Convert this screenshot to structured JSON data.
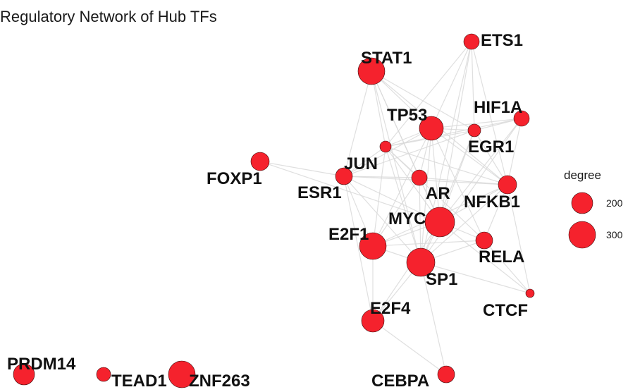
{
  "title": "Regulatory Network of Hub TFs",
  "colors": {
    "node_fill": "#f5222d",
    "node_stroke": "#3a0a0a",
    "edge": "#d9d9d9"
  },
  "legend": {
    "title": "degree",
    "items": [
      {
        "label": "200"
      },
      {
        "label": "300"
      }
    ]
  },
  "nodes": [
    {
      "id": "STAT1",
      "label": "STAT1"
    },
    {
      "id": "ETS1",
      "label": "ETS1"
    },
    {
      "id": "TP53",
      "label": "TP53"
    },
    {
      "id": "HIF1A",
      "label": "HIF1A"
    },
    {
      "id": "EGR1",
      "label": "EGR1"
    },
    {
      "id": "JUN",
      "label": "JUN"
    },
    {
      "id": "FOXP1",
      "label": "FOXP1"
    },
    {
      "id": "ESR1",
      "label": "ESR1"
    },
    {
      "id": "AR",
      "label": "AR"
    },
    {
      "id": "NFKB1",
      "label": "NFKB1"
    },
    {
      "id": "MYC",
      "label": "MYC"
    },
    {
      "id": "E2F1",
      "label": "E2F1"
    },
    {
      "id": "RELA",
      "label": "RELA"
    },
    {
      "id": "SP1",
      "label": "SP1"
    },
    {
      "id": "CTCF",
      "label": "CTCF"
    },
    {
      "id": "E2F4",
      "label": "E2F4"
    },
    {
      "id": "PRDM14",
      "label": "PRDM14"
    },
    {
      "id": "TEAD1",
      "label": "TEAD1"
    },
    {
      "id": "ZNF263",
      "label": "ZNF263"
    },
    {
      "id": "CEBPA",
      "label": "CEBPA"
    }
  ],
  "edges": [
    [
      "STAT1",
      "TP53"
    ],
    [
      "STAT1",
      "JUN"
    ],
    [
      "STAT1",
      "ESR1"
    ],
    [
      "STAT1",
      "MYC"
    ],
    [
      "STAT1",
      "SP1"
    ],
    [
      "STAT1",
      "NFKB1"
    ],
    [
      "STAT1",
      "EGR1"
    ],
    [
      "STAT1",
      "AR"
    ],
    [
      "ETS1",
      "TP53"
    ],
    [
      "ETS1",
      "EGR1"
    ],
    [
      "ETS1",
      "NFKB1"
    ],
    [
      "ETS1",
      "JUN"
    ],
    [
      "ETS1",
      "MYC"
    ],
    [
      "ETS1",
      "SP1"
    ],
    [
      "TP53",
      "HIF1A"
    ],
    [
      "TP53",
      "EGR1"
    ],
    [
      "TP53",
      "JUN"
    ],
    [
      "TP53",
      "ESR1"
    ],
    [
      "TP53",
      "AR"
    ],
    [
      "TP53",
      "NFKB1"
    ],
    [
      "TP53",
      "MYC"
    ],
    [
      "TP53",
      "E2F1"
    ],
    [
      "TP53",
      "SP1"
    ],
    [
      "TP53",
      "RELA"
    ],
    [
      "HIF1A",
      "EGR1"
    ],
    [
      "HIF1A",
      "NFKB1"
    ],
    [
      "HIF1A",
      "MYC"
    ],
    [
      "HIF1A",
      "JUN"
    ],
    [
      "HIF1A",
      "SP1"
    ],
    [
      "EGR1",
      "JUN"
    ],
    [
      "EGR1",
      "NFKB1"
    ],
    [
      "EGR1",
      "MYC"
    ],
    [
      "EGR1",
      "SP1"
    ],
    [
      "EGR1",
      "ESR1"
    ],
    [
      "JUN",
      "ESR1"
    ],
    [
      "JUN",
      "AR"
    ],
    [
      "JUN",
      "MYC"
    ],
    [
      "JUN",
      "SP1"
    ],
    [
      "JUN",
      "NFKB1"
    ],
    [
      "JUN",
      "E2F1"
    ],
    [
      "JUN",
      "RELA"
    ],
    [
      "FOXP1",
      "ESR1"
    ],
    [
      "FOXP1",
      "MYC"
    ],
    [
      "ESR1",
      "AR"
    ],
    [
      "ESR1",
      "MYC"
    ],
    [
      "ESR1",
      "E2F1"
    ],
    [
      "ESR1",
      "SP1"
    ],
    [
      "ESR1",
      "E2F4"
    ],
    [
      "ESR1",
      "NFKB1"
    ],
    [
      "AR",
      "MYC"
    ],
    [
      "AR",
      "SP1"
    ],
    [
      "AR",
      "E2F1"
    ],
    [
      "AR",
      "NFKB1"
    ],
    [
      "NFKB1",
      "MYC"
    ],
    [
      "NFKB1",
      "RELA"
    ],
    [
      "NFKB1",
      "SP1"
    ],
    [
      "NFKB1",
      "CTCF"
    ],
    [
      "NFKB1",
      "E2F1"
    ],
    [
      "MYC",
      "E2F1"
    ],
    [
      "MYC",
      "SP1"
    ],
    [
      "MYC",
      "RELA"
    ],
    [
      "MYC",
      "E2F4"
    ],
    [
      "MYC",
      "CTCF"
    ],
    [
      "E2F1",
      "SP1"
    ],
    [
      "E2F1",
      "E2F4"
    ],
    [
      "E2F1",
      "RELA"
    ],
    [
      "SP1",
      "RELA"
    ],
    [
      "SP1",
      "E2F4"
    ],
    [
      "SP1",
      "CEBPA"
    ],
    [
      "SP1",
      "CTCF"
    ],
    [
      "RELA",
      "CTCF"
    ],
    [
      "E2F4",
      "CEBPA"
    ]
  ]
}
